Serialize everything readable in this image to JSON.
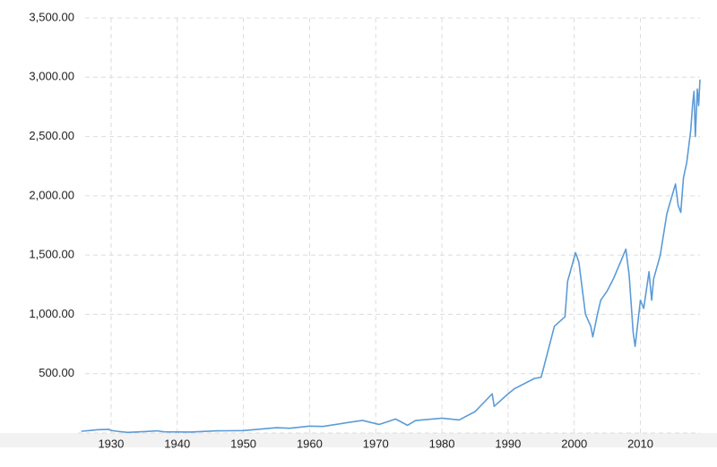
{
  "chart_data": {
    "type": "line",
    "series": [
      {
        "color": "#5b9bd8",
        "x": [
          1925.5,
          1926,
          1927,
          1928,
          1929.7,
          1930,
          1931,
          1932.5,
          1935,
          1937,
          1938,
          1942,
          1946,
          1950,
          1955,
          1957,
          1960,
          1962,
          1966,
          1968,
          1970.5,
          1973,
          1974.8,
          1976,
          1980,
          1982.6,
          1985,
          1987.6,
          1987.9,
          1990,
          1991,
          1994,
          1995,
          1997,
          1998.6,
          1999,
          2000.2,
          2000.7,
          2001.7,
          2002.5,
          2002.8,
          2003.5,
          2004,
          2005,
          2006,
          2007.8,
          2008.3,
          2008.9,
          2009.2,
          2010,
          2010.5,
          2011.3,
          2011.7,
          2012,
          2013,
          2014,
          2015.3,
          2015.7,
          2016.1,
          2016.5,
          2017,
          2017.6,
          2017.9,
          2018.1,
          2018.3,
          2018.6,
          2018.8,
          2019
        ],
        "values": [
          15,
          17,
          22,
          28,
          31,
          21,
          14,
          5,
          12,
          18,
          10,
          8,
          18,
          20,
          45,
          40,
          58,
          55,
          90,
          106,
          72,
          118,
          65,
          105,
          125,
          110,
          180,
          330,
          225,
          330,
          375,
          460,
          470,
          900,
          980,
          1280,
          1520,
          1440,
          1000,
          900,
          810,
          1000,
          1120,
          1200,
          1310,
          1550,
          1330,
          850,
          730,
          1120,
          1050,
          1360,
          1120,
          1300,
          1500,
          1850,
          2100,
          1920,
          1860,
          2150,
          2280,
          2550,
          2780,
          2880,
          2500,
          2900,
          2760,
          2980
        ]
      }
    ],
    "xlim": [
      1925,
      2019
    ],
    "xticks": [
      1930,
      1940,
      1950,
      1960,
      1970,
      1980,
      1990,
      2000,
      2010
    ],
    "ylim": [
      0,
      3500
    ],
    "yticks": [
      {
        "value": 500,
        "label": "500.00"
      },
      {
        "value": 1000,
        "label": "1,000.00"
      },
      {
        "value": 1500,
        "label": "1,500.00"
      },
      {
        "value": 2000,
        "label": "2,000.00"
      },
      {
        "value": 2500,
        "label": "2,500.00"
      },
      {
        "value": 3000,
        "label": "3,000.00"
      },
      {
        "value": 3500,
        "label": "3,500.00"
      }
    ],
    "grid": true
  }
}
